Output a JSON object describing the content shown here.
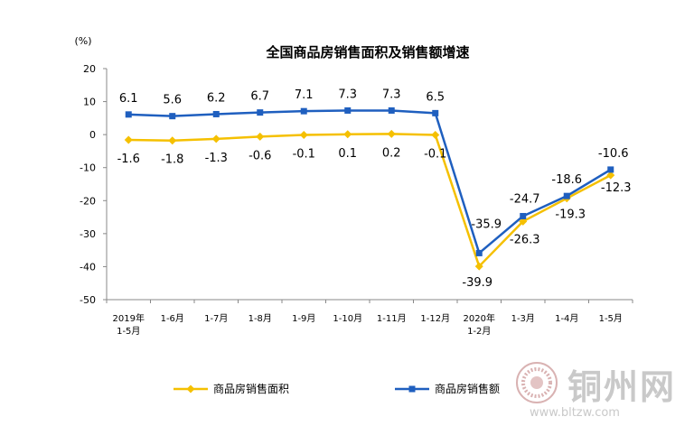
{
  "chart_data": {
    "type": "line",
    "title": "全国商品房销售面积及销售额增速",
    "ylabel": "(%)",
    "ylim": [
      -50,
      20
    ],
    "yticks": [
      20,
      10,
      0,
      -10,
      -20,
      -30,
      -40,
      -50
    ],
    "categories": [
      [
        "2019年",
        "1-5月"
      ],
      [
        "1-6月"
      ],
      [
        "1-7月"
      ],
      [
        "1-8月"
      ],
      [
        "1-9月"
      ],
      [
        "1-10月"
      ],
      [
        "1-11月"
      ],
      [
        "1-12月"
      ],
      [
        "2020年",
        "1-2月"
      ],
      [
        "1-3月"
      ],
      [
        "1-4月"
      ],
      [
        "1-5月"
      ]
    ],
    "series": [
      {
        "name": "商品房销售面积",
        "color": "#f5c000",
        "marker": "diamond",
        "values": [
          -1.6,
          -1.8,
          -1.3,
          -0.6,
          -0.1,
          0.1,
          0.2,
          -0.1,
          -39.9,
          -26.3,
          -19.3,
          -12.3
        ],
        "labels": [
          "-1.6",
          "-1.8",
          "-1.3",
          "-0.6",
          "-0.1",
          "0.1",
          "0.2",
          "-0.1",
          "-39.9",
          "-26.3",
          "-19.3",
          "-12.3"
        ]
      },
      {
        "name": "商品房销售额",
        "color": "#1f5fbf",
        "marker": "square",
        "values": [
          6.1,
          5.6,
          6.2,
          6.7,
          7.1,
          7.3,
          7.3,
          6.5,
          -35.9,
          -24.7,
          -18.6,
          -10.6
        ],
        "labels": [
          "6.1",
          "5.6",
          "6.2",
          "6.7",
          "7.1",
          "7.3",
          "7.3",
          "6.5",
          "-35.9",
          "-24.7",
          "-18.6",
          "-10.6"
        ]
      }
    ],
    "legend_position": "bottom",
    "grid": false
  },
  "watermark": {
    "name": "铜州网",
    "url": "www.bltzw.com"
  }
}
